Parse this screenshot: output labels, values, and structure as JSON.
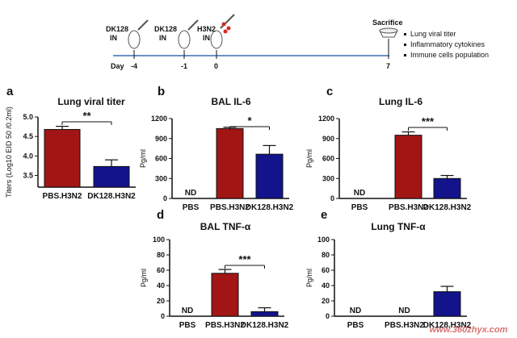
{
  "timeline": {
    "events": [
      {
        "agent": "DK128",
        "route": "IN",
        "color": "#2aa84a"
      },
      {
        "agent": "DK128",
        "route": "IN",
        "color": "#2aa84a"
      },
      {
        "agent": "H3N2",
        "route": "IN",
        "color": "#d62a2a"
      },
      {
        "agent": "Sacrifice",
        "route": "",
        "color": "#d62a2a"
      }
    ],
    "day_label": "Day",
    "days": [
      "-4",
      "-1",
      "0",
      "7"
    ],
    "readouts": [
      "Lung viral titer",
      "Inflammatory cytokines",
      "Immune cells population"
    ]
  },
  "watermark": "www.360zhyx.com",
  "chart_data": [
    {
      "type": "bar",
      "panel": "a",
      "title": "Lung viral titer",
      "ylabel": "Titers (Log10 EID 50 /0.2ml)",
      "ylim": [
        3.2,
        5.0
      ],
      "yticks": [
        "3.5",
        "4.0",
        "4.5",
        "5.0"
      ],
      "categories": [
        "PBS.H3N2",
        "DK128.H3N2"
      ],
      "values": [
        4.68,
        3.73
      ],
      "errors": [
        0.08,
        0.17
      ],
      "colors": [
        "#a11515",
        "#13138c"
      ],
      "significance": "**",
      "nd": [
        false,
        false
      ]
    },
    {
      "type": "bar",
      "panel": "b",
      "title": "BAL IL-6",
      "ylabel": "Pg/ml",
      "ylim": [
        0,
        1200
      ],
      "yticks": [
        "0",
        "300",
        "600",
        "900",
        "1200"
      ],
      "categories": [
        "PBS",
        "PBS.H3N2",
        "DK128.H3N2"
      ],
      "values": [
        0,
        1050,
        665
      ],
      "errors": [
        0,
        20,
        130
      ],
      "colors": [
        "#a11515",
        "#a11515",
        "#13138c"
      ],
      "significance": "*",
      "nd": [
        true,
        false,
        false
      ],
      "nd_label": "ND"
    },
    {
      "type": "bar",
      "panel": "c",
      "title": "Lung IL-6",
      "ylabel": "Pg/ml",
      "ylim": [
        0,
        1200
      ],
      "yticks": [
        "0",
        "300",
        "600",
        "900",
        "1200"
      ],
      "categories": [
        "PBS",
        "PBS.H3N2",
        "DK128.H3N2"
      ],
      "values": [
        0,
        950,
        300
      ],
      "errors": [
        0,
        50,
        45
      ],
      "colors": [
        "#a11515",
        "#a11515",
        "#13138c"
      ],
      "significance": "***",
      "nd": [
        true,
        false,
        false
      ],
      "nd_label": "ND"
    },
    {
      "type": "bar",
      "panel": "d",
      "title": "BAL TNF-α",
      "ylabel": "Pg/ml",
      "ylim": [
        0,
        100
      ],
      "yticks": [
        "0",
        "20",
        "40",
        "60",
        "80",
        "100"
      ],
      "categories": [
        "PBS",
        "PBS.H3N2",
        "DK128.H3N2"
      ],
      "values": [
        0,
        56,
        6
      ],
      "errors": [
        0,
        5,
        5
      ],
      "colors": [
        "#a11515",
        "#a11515",
        "#13138c"
      ],
      "significance": "***",
      "nd": [
        true,
        false,
        false
      ],
      "nd_label": "ND"
    },
    {
      "type": "bar",
      "panel": "e",
      "title": "Lung TNF-α",
      "ylabel": "Pg/ml",
      "ylim": [
        0,
        100
      ],
      "yticks": [
        "0",
        "20",
        "40",
        "60",
        "80",
        "100"
      ],
      "categories": [
        "PBS",
        "PBS.H3N2",
        "DK128.H3N2"
      ],
      "values": [
        0,
        0,
        32
      ],
      "errors": [
        0,
        0,
        7
      ],
      "colors": [
        "#a11515",
        "#a11515",
        "#13138c"
      ],
      "significance": "",
      "nd": [
        true,
        true,
        false
      ],
      "nd_label": "ND"
    }
  ]
}
